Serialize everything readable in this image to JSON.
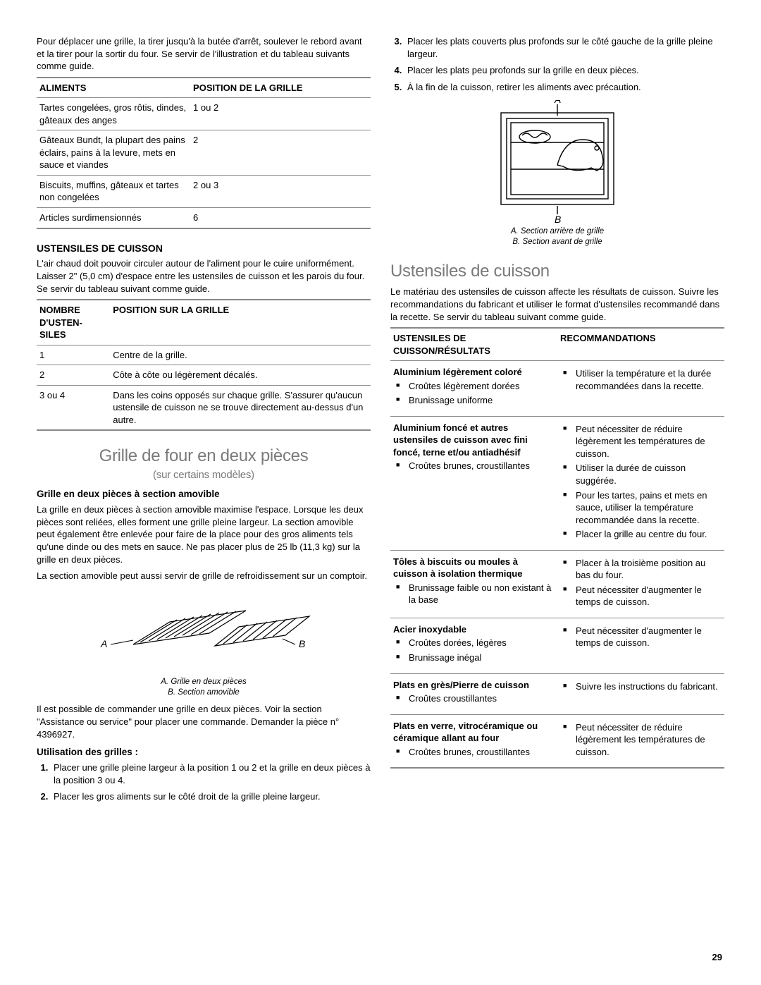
{
  "left": {
    "intro": "Pour déplacer une grille, la tirer jusqu'à la butée d'arrêt, soulever le rebord avant et la tirer pour la sortir du four. Se servir de l'illustration et du tableau suivants comme guide.",
    "table1": {
      "h1": "ALIMENTS",
      "h2": "POSITION DE LA GRILLE",
      "rows": [
        [
          "Tartes congelées, gros rôtis, dindes, gâteaux des anges",
          "1 ou 2"
        ],
        [
          "Gâteaux Bundt, la plupart des pains éclairs, pains à la levure, mets en sauce et viandes",
          "2"
        ],
        [
          "Biscuits, muffins, gâteaux et tartes non congelées",
          "2 ou 3"
        ],
        [
          "Articles surdimensionnés",
          "6"
        ]
      ]
    },
    "ustensiles_h": "USTENSILES DE CUISSON",
    "ustensiles_p": "L'air chaud doit pouvoir circuler autour de l'aliment pour le cuire uniformément. Laisser 2\" (5,0 cm) d'espace entre les ustensiles de cuisson et les parois du four. Se servir du tableau suivant comme guide.",
    "table2": {
      "h1": "NOMBRE D'USTEN-SILES",
      "h2": "POSITION SUR LA GRILLE",
      "rows": [
        [
          "1",
          "Centre de la grille."
        ],
        [
          "2",
          "Côte à côte ou légèrement décalés."
        ],
        [
          "3 ou 4",
          "Dans les coins opposés sur chaque grille. S'assurer qu'aucun ustensile de cuisson ne se trouve directement au-dessus d'un autre."
        ]
      ]
    },
    "sect_title": "Grille de four en deux pièces",
    "sect_sub": "(sur certains modèles)",
    "grille_h": "Grille en deux pièces à section amovible",
    "grille_p1": "La grille en deux pièces à section amovible maximise l'espace. Lorsque les deux pièces sont reliées, elles forment une grille pleine largeur. La section amovible peut également être enlevée pour faire de la place pour des gros aliments tels qu'une dinde ou des mets en sauce. Ne pas placer plus de 25 lb (11,3 kg) sur la grille en deux pièces.",
    "grille_p2": "La section amovible peut aussi servir de grille de refroidissement sur un comptoir.",
    "fig1_a": "A",
    "fig1_b": "B",
    "fig1_cap_a": "A. Grille en deux pièces",
    "fig1_cap_b": "B. Section amovible",
    "grille_p3": "Il est possible de commander une grille en deux pièces. Voir la section \"Assistance ou service\" pour placer une commande. Demander la pièce n° 4396927.",
    "util_h": "Utilisation des grilles :",
    "ol1": "Placer une grille pleine largeur à la position 1 ou 2 et la grille en deux pièces à la position 3 ou 4.",
    "ol2": "Placer les gros aliments sur le côté droit de la grille pleine largeur."
  },
  "right": {
    "ol3": "Placer les plats couverts plus profonds sur le côté gauche de la grille pleine largeur.",
    "ol4": "Placer les plats peu profonds sur la grille en deux pièces.",
    "ol5": "À la fin de la cuisson, retirer les aliments avec précaution.",
    "fig2_a": "A",
    "fig2_b": "B",
    "fig2_cap_a": "A. Section arrière de grille",
    "fig2_cap_b": "B. Section avant de grille",
    "sect_title": "Ustensiles de cuisson",
    "sect_p": "Le matériau des ustensiles de cuisson affecte les résultats de cuisson. Suivre les recommandations du fabricant et utiliser le format d'ustensiles recommandé dans la recette. Se servir du tableau suivant comme guide.",
    "h1": "USTENSILES DE CUISSON/RÉSULTATS",
    "h2": "RECOMMANDATIONS",
    "rows": [
      {
        "title": "Aluminium légèrement coloré",
        "results": [
          "Croûtes légèrement dorées",
          "Brunissage uniforme"
        ],
        "recs": [
          "Utiliser la température et la durée recommandées dans la recette."
        ]
      },
      {
        "title": "Aluminium foncé et autres ustensiles de cuisson avec fini foncé, terne et/ou antiadhésif",
        "results": [
          "Croûtes brunes, croustillantes"
        ],
        "recs": [
          "Peut nécessiter de réduire légèrement les températures de cuisson.",
          "Utiliser la durée de cuisson suggérée.",
          "Pour les tartes, pains et mets en sauce, utiliser la température recommandée dans la recette.",
          "Placer la grille au centre du four."
        ]
      },
      {
        "title": "Tôles à biscuits ou moules à cuisson à isolation thermique",
        "results": [
          "Brunissage faible ou non existant à la base"
        ],
        "recs": [
          "Placer à la troisième position au bas du four.",
          "Peut nécessiter d'augmenter le temps de cuisson."
        ]
      },
      {
        "title": "Acier inoxydable",
        "results": [
          "Croûtes dorées, légères",
          "Brunissage inégal"
        ],
        "recs": [
          "Peut nécessiter d'augmenter le temps de cuisson."
        ]
      },
      {
        "title": "Plats en grès/Pierre de cuisson",
        "results": [
          "Croûtes croustillantes"
        ],
        "recs": [
          "Suivre les instructions du fabricant."
        ]
      },
      {
        "title": "Plats en verre, vitrocéramique ou céramique allant au four",
        "results": [
          "Croûtes brunes, croustillantes"
        ],
        "recs": [
          "Peut nécessiter de réduire légèrement les températures de cuisson."
        ]
      }
    ]
  },
  "page_num": "29",
  "colors": {
    "rule": "#888888",
    "section": "#7a7a7a"
  }
}
